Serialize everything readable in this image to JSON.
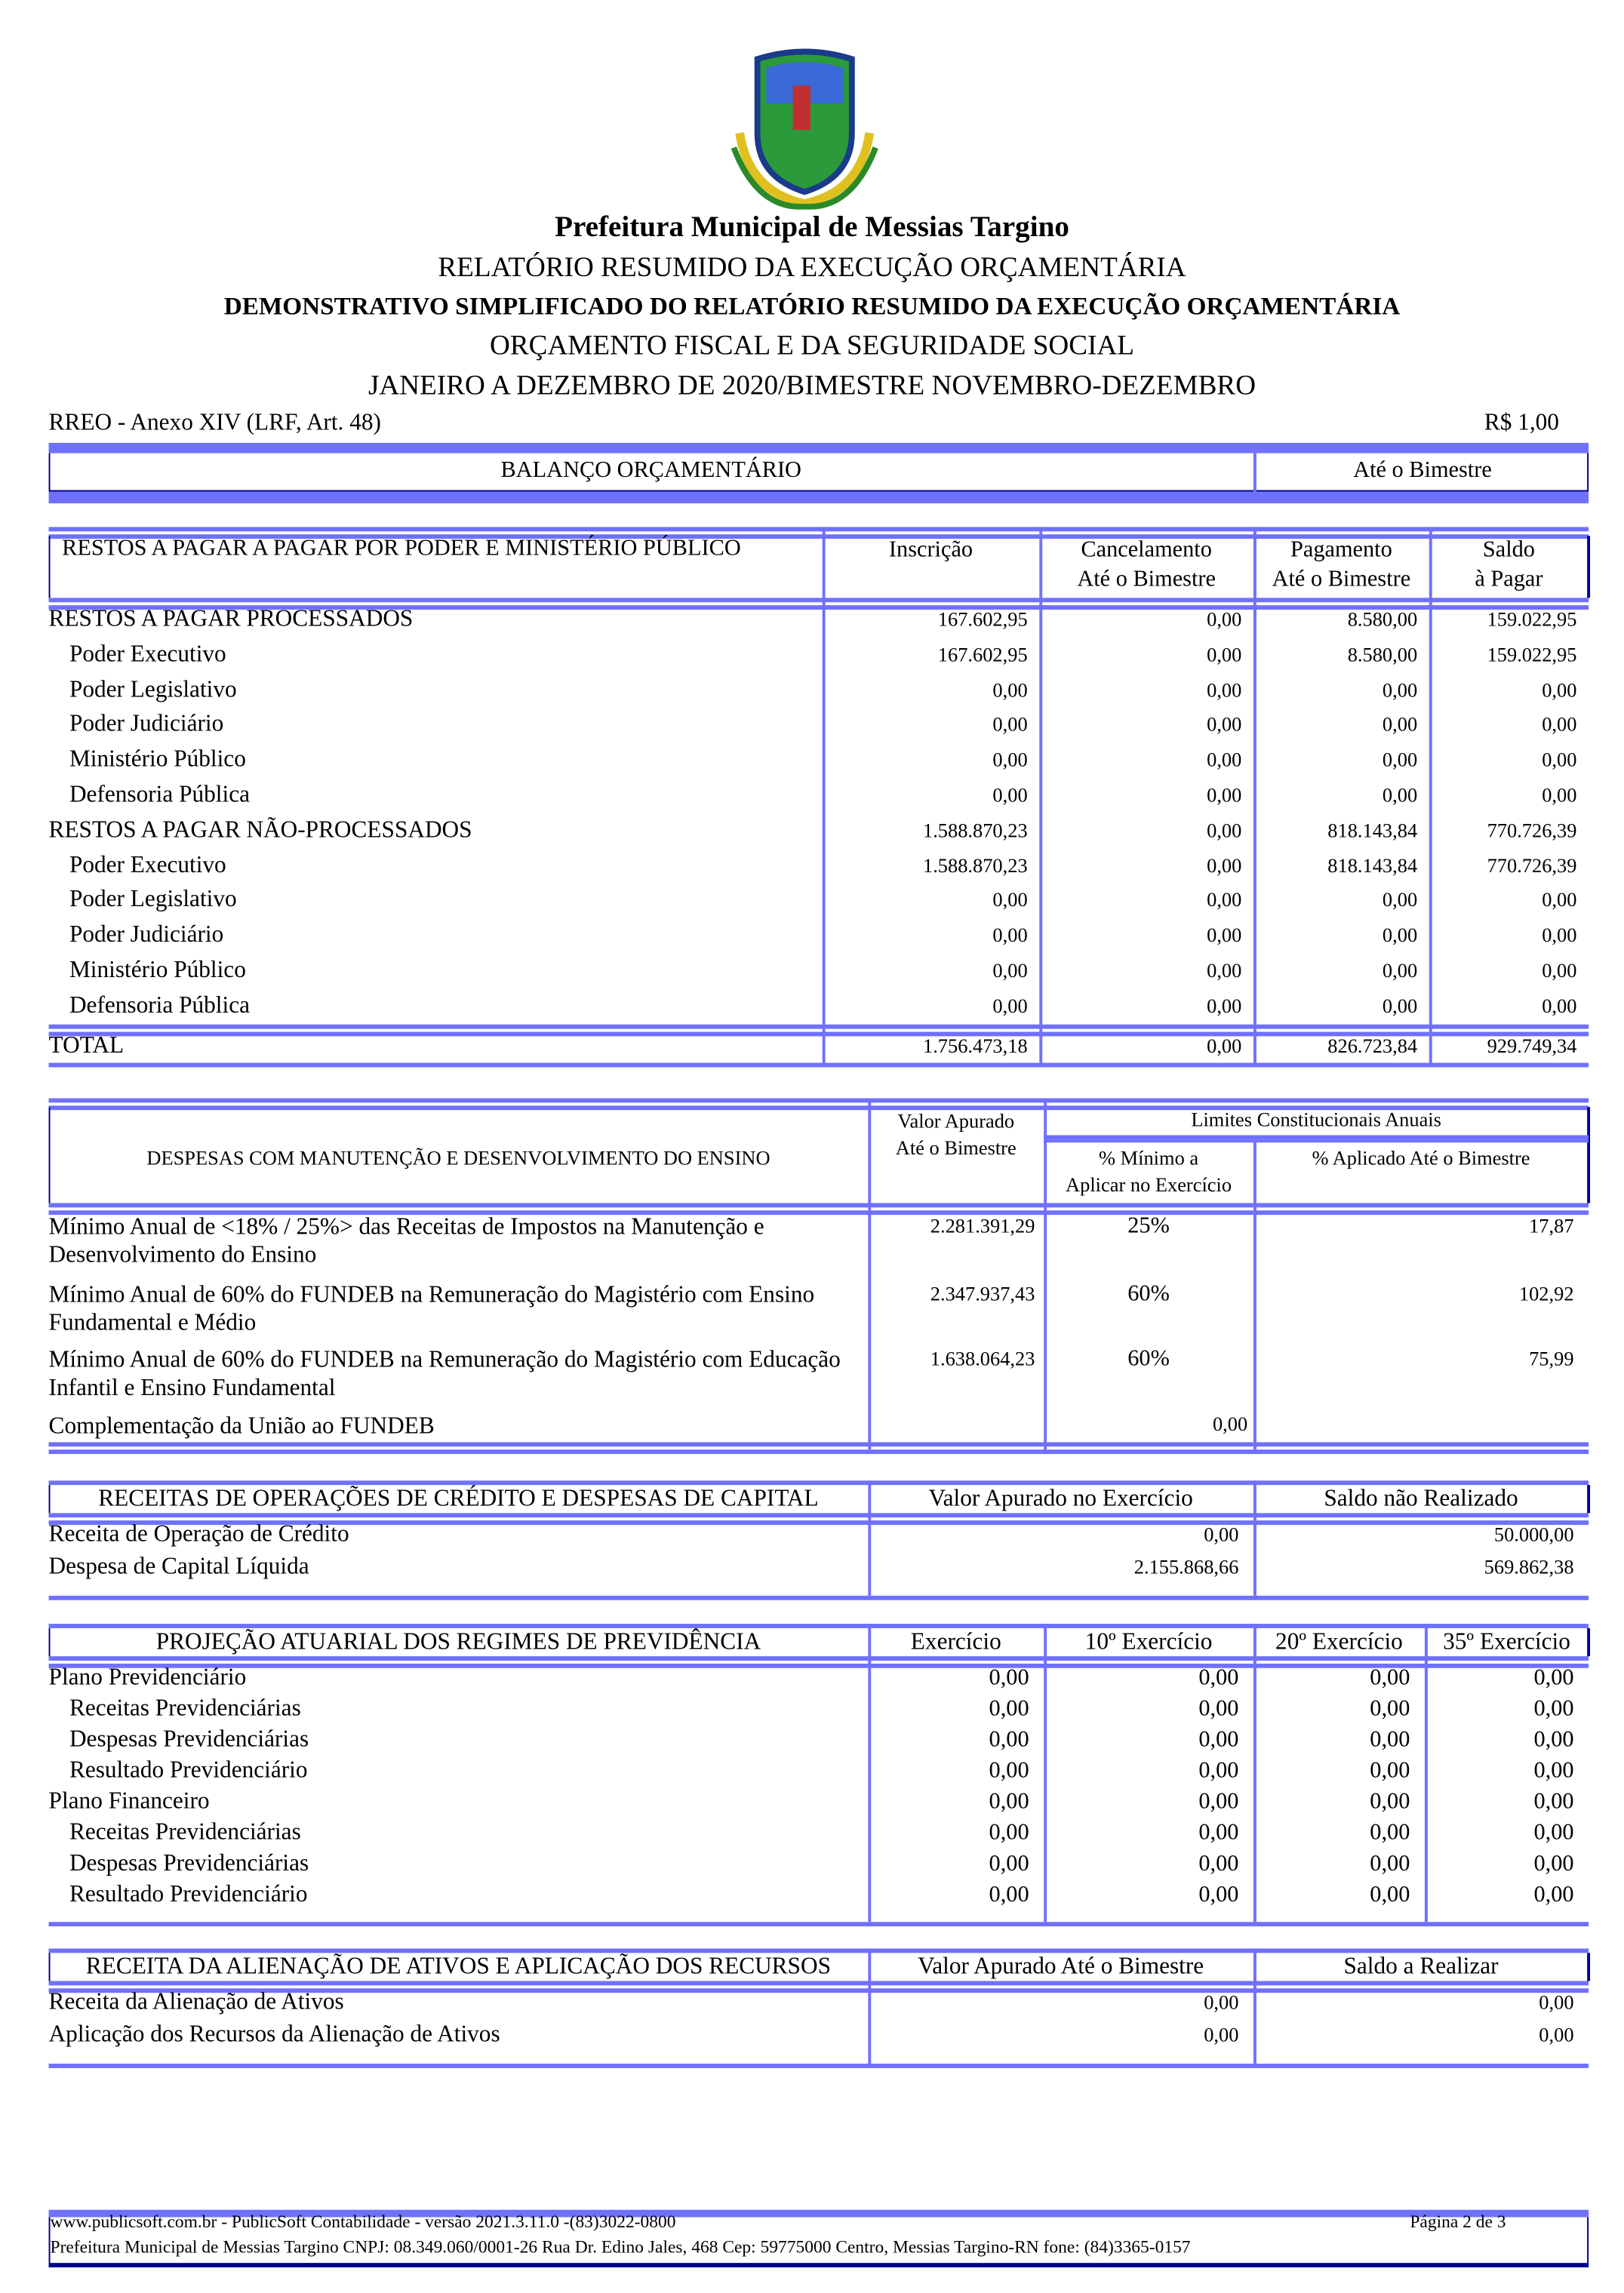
{
  "colors": {
    "rule": "#7070ff",
    "border": "#00008b"
  },
  "header": {
    "logo": "coat-of-arms",
    "entity": "Prefeitura Municipal de Messias Targino",
    "line1": "RELATÓRIO RESUMIDO DA EXECUÇÃO ORÇAMENTÁRIA",
    "line2": "DEMONSTRATIVO SIMPLIFICADO DO RELATÓRIO RESUMIDO DA EXECUÇÃO ORÇAMENTÁRIA",
    "line3": "ORÇAMENTO FISCAL E DA SEGURIDADE SOCIAL",
    "line4": "JANEIRO A DEZEMBRO DE 2020/BIMESTRE NOVEMBRO-DEZEMBRO",
    "annex": "RREO - Anexo XIV (LRF, Art. 48)",
    "unit": "R$ 1,00"
  },
  "balanco": {
    "title": "BALANÇO ORÇAMENTÁRIO",
    "col": "Até o Bimestre"
  },
  "restos": {
    "headers": [
      "RESTOS A PAGAR A PAGAR POR PODER E MINISTÉRIO PÚBLICO",
      "Inscrição",
      "Cancelamento\nAté o Bimestre",
      "Pagamento\nAté o Bimestre",
      "Saldo\nà Pagar"
    ],
    "rows": [
      {
        "label": "RESTOS A PAGAR PROCESSADOS",
        "indent": false,
        "values": [
          "167.602,95",
          "0,00",
          "8.580,00",
          "159.022,95"
        ]
      },
      {
        "label": "Poder Executivo",
        "indent": true,
        "values": [
          "167.602,95",
          "0,00",
          "8.580,00",
          "159.022,95"
        ]
      },
      {
        "label": "Poder Legislativo",
        "indent": true,
        "values": [
          "0,00",
          "0,00",
          "0,00",
          "0,00"
        ]
      },
      {
        "label": "Poder Judiciário",
        "indent": true,
        "values": [
          "0,00",
          "0,00",
          "0,00",
          "0,00"
        ]
      },
      {
        "label": "Ministério Público",
        "indent": true,
        "values": [
          "0,00",
          "0,00",
          "0,00",
          "0,00"
        ]
      },
      {
        "label": "Defensoria Pública",
        "indent": true,
        "values": [
          "0,00",
          "0,00",
          "0,00",
          "0,00"
        ]
      },
      {
        "label": "RESTOS A PAGAR NÃO-PROCESSADOS",
        "indent": false,
        "values": [
          "1.588.870,23",
          "0,00",
          "818.143,84",
          "770.726,39"
        ]
      },
      {
        "label": "Poder Executivo",
        "indent": true,
        "values": [
          "1.588.870,23",
          "0,00",
          "818.143,84",
          "770.726,39"
        ]
      },
      {
        "label": "Poder Legislativo",
        "indent": true,
        "values": [
          "0,00",
          "0,00",
          "0,00",
          "0,00"
        ]
      },
      {
        "label": "Poder Judiciário",
        "indent": true,
        "values": [
          "0,00",
          "0,00",
          "0,00",
          "0,00"
        ]
      },
      {
        "label": "Ministério Público",
        "indent": true,
        "values": [
          "0,00",
          "0,00",
          "0,00",
          "0,00"
        ]
      },
      {
        "label": "Defensoria Pública",
        "indent": true,
        "values": [
          "0,00",
          "0,00",
          "0,00",
          "0,00"
        ]
      }
    ],
    "total": {
      "label": "TOTAL",
      "values": [
        "1.756.473,18",
        "0,00",
        "826.723,84",
        "929.749,34"
      ]
    }
  },
  "mde": {
    "title": "DESPESAS COM MANUTENÇÃO E DESENVOLVIMENTO DO ENSINO",
    "valor_header": "Valor Apurado\nAté o Bimestre",
    "limites_header": "Limites Constitucionais Anuais",
    "min_header": "% Mínimo a\nAplicar no Exercício",
    "aplicado_header": "% Aplicado Até o Bimestre",
    "rows": [
      {
        "label": "Mínimo Anual de <18% / 25%> das Receitas de Impostos na Manutenção e Desenvolvimento do Ensino",
        "valor": "2.281.391,29",
        "minimo": "25%",
        "aplicado": "17,87"
      },
      {
        "label": "Mínimo Anual de 60% do FUNDEB na Remuneração do Magistério com Ensino Fundamental e Médio",
        "valor": "2.347.937,43",
        "minimo": "60%",
        "aplicado": "102,92"
      },
      {
        "label": "Mínimo Anual de 60% do FUNDEB na Remuneração do Magistério com Educação Infantil e Ensino Fundamental",
        "valor": "1.638.064,23",
        "minimo": "60%",
        "aplicado": "75,99"
      }
    ],
    "complementacao": {
      "label": "Complementação da União ao FUNDEB",
      "value": "0,00"
    }
  },
  "credito": {
    "headers": [
      "RECEITAS DE OPERAÇÕES DE CRÉDITO E DESPESAS DE CAPITAL",
      "Valor Apurado no Exercício",
      "Saldo não Realizado"
    ],
    "rows": [
      {
        "label": "Receita de Operação de Crédito",
        "values": [
          "0,00",
          "50.000,00"
        ]
      },
      {
        "label": "Despesa de Capital Líquida",
        "values": [
          "2.155.868,66",
          "569.862,38"
        ]
      }
    ]
  },
  "previdencia": {
    "headers": [
      "PROJEÇÃO ATUARIAL DOS REGIMES DE PREVIDÊNCIA",
      "Exercício",
      "10º Exercício",
      "20º Exercício",
      "35º Exercício"
    ],
    "rows": [
      {
        "label": "Plano Previdenciário",
        "indent": false,
        "values": [
          "0,00",
          "0,00",
          "0,00",
          "0,00"
        ]
      },
      {
        "label": "Receitas Previdenciárias",
        "indent": true,
        "values": [
          "0,00",
          "0,00",
          "0,00",
          "0,00"
        ]
      },
      {
        "label": "Despesas Previdenciárias",
        "indent": true,
        "values": [
          "0,00",
          "0,00",
          "0,00",
          "0,00"
        ]
      },
      {
        "label": "Resultado Previdenciário",
        "indent": true,
        "values": [
          "0,00",
          "0,00",
          "0,00",
          "0,00"
        ]
      },
      {
        "label": "Plano Financeiro",
        "indent": false,
        "values": [
          "0,00",
          "0,00",
          "0,00",
          "0,00"
        ]
      },
      {
        "label": "Receitas Previdenciárias",
        "indent": true,
        "values": [
          "0,00",
          "0,00",
          "0,00",
          "0,00"
        ]
      },
      {
        "label": "Despesas Previdenciárias",
        "indent": true,
        "values": [
          "0,00",
          "0,00",
          "0,00",
          "0,00"
        ]
      },
      {
        "label": "Resultado Previdenciário",
        "indent": true,
        "values": [
          "0,00",
          "0,00",
          "0,00",
          "0,00"
        ]
      }
    ]
  },
  "alienacao": {
    "headers": [
      "RECEITA DA ALIENAÇÃO DE ATIVOS E APLICAÇÃO DOS RECURSOS",
      "Valor Apurado Até o Bimestre",
      "Saldo a Realizar"
    ],
    "rows": [
      {
        "label": "Receita da Alienação de Ativos",
        "values": [
          "0,00",
          "0,00"
        ]
      },
      {
        "label": "Aplicação dos Recursos da Alienação de Ativos",
        "values": [
          "0,00",
          "0,00"
        ]
      }
    ]
  },
  "footer": {
    "software": "www.publicsoft.com.br - PublicSoft Contabilidade - versão 2021.3.11.0 -(83)3022-0800",
    "page": "Página 2 de 3",
    "address": "Prefeitura Municipal de Messias Targino CNPJ: 08.349.060/0001-26 Rua Dr. Edino Jales, 468 Cep: 59775000 Centro, Messias Targino-RN fone: (84)3365-0157"
  }
}
